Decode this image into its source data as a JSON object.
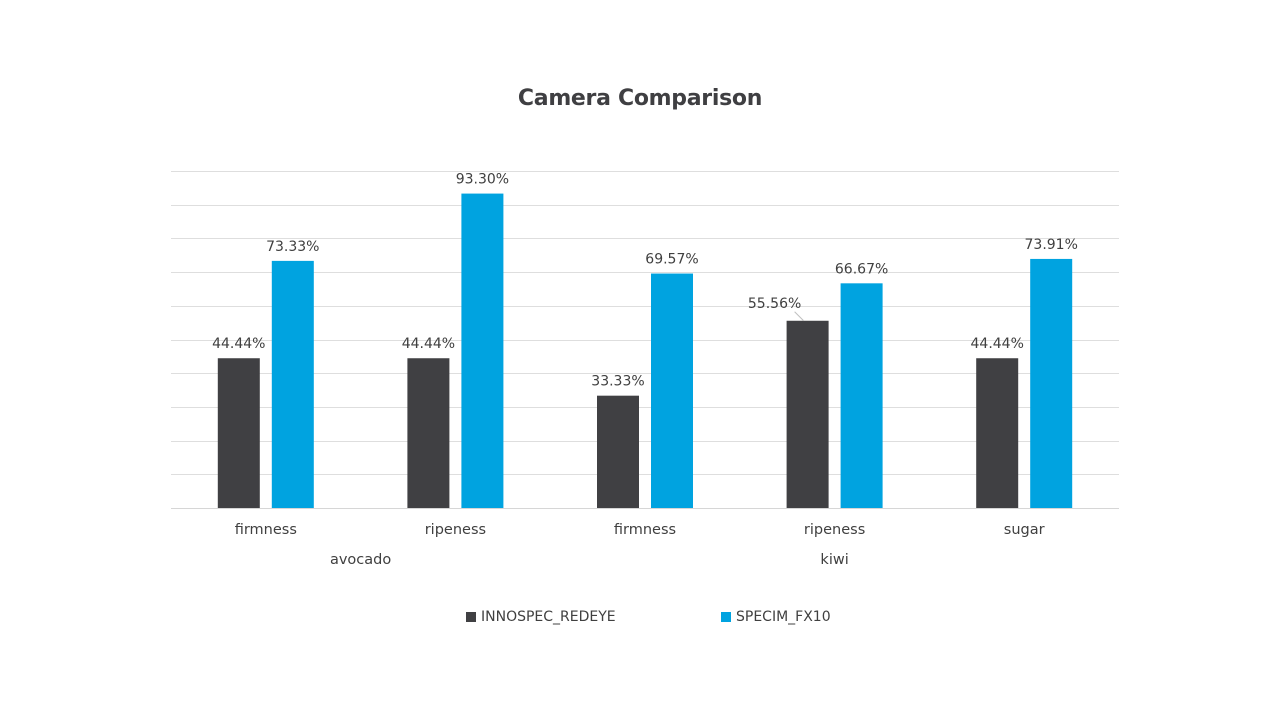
{
  "chart_data": {
    "type": "bar",
    "title": "Camera Comparison",
    "xlabel": "",
    "ylabel": "",
    "groups": [
      {
        "label": "avocado",
        "categories": [
          "firmness",
          "ripeness"
        ]
      },
      {
        "label": "kiwi",
        "categories": [
          "firmness",
          "ripeness",
          "sugar"
        ]
      }
    ],
    "categories": [
      "firmness",
      "ripeness",
      "firmness",
      "ripeness",
      "sugar"
    ],
    "series": [
      {
        "name": "INNOSPEC_REDEYE",
        "color": "#404043",
        "values": [
          44.44,
          44.44,
          33.33,
          55.56,
          44.44
        ],
        "labels": [
          "44.44%",
          "44.44%",
          "33.33%",
          "55.56%",
          "44.44%"
        ]
      },
      {
        "name": "SPECIM_FX10",
        "color": "#00a3e0",
        "values": [
          73.33,
          93.3,
          69.57,
          66.67,
          73.91
        ],
        "labels": [
          "73.33%",
          "93.30%",
          "69.57%",
          "66.67%",
          "73.91%"
        ]
      }
    ],
    "ylim": [
      0,
      100
    ],
    "grid": true,
    "y_axis_labels_shown": false,
    "legend_position": "bottom"
  }
}
